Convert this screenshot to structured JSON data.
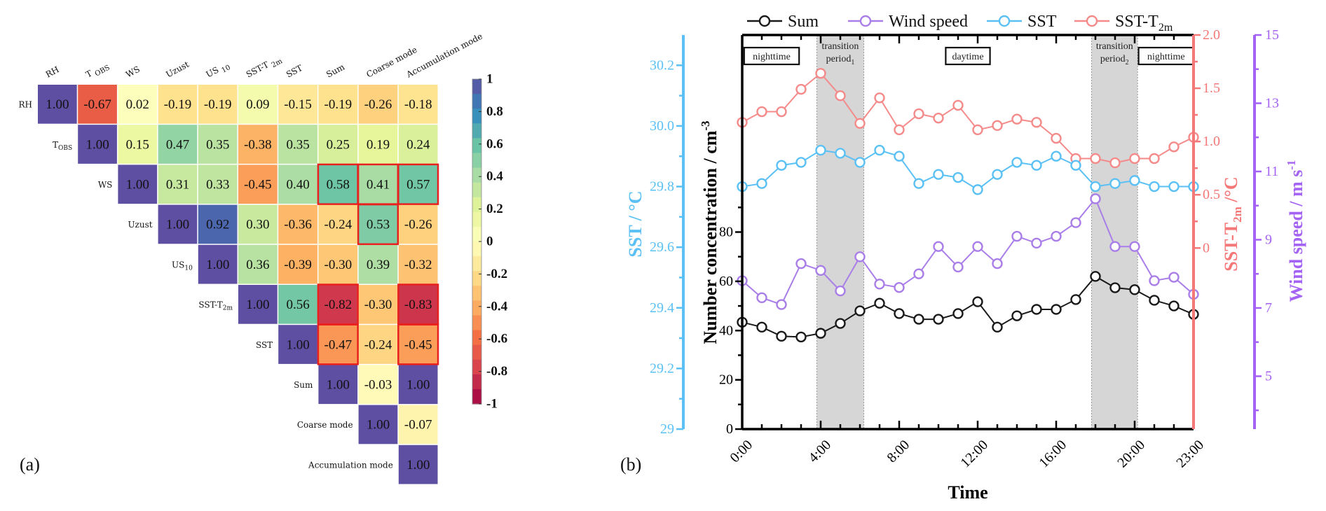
{
  "figure": {
    "panel_a_label": "(a)",
    "panel_b_label": "(b)"
  },
  "chart_data": [
    {
      "type": "heatmap",
      "title": "",
      "variables": [
        "RH",
        "T_OBS",
        "WS",
        "Uzust",
        "US_10",
        "SST-T_2m",
        "SST",
        "Sum",
        "Coarse mode",
        "Accumulation mode"
      ],
      "row_labels": [
        {
          "main": "RH",
          "sub": ""
        },
        {
          "main": "T",
          "sub": "OBS"
        },
        {
          "main": "WS",
          "sub": ""
        },
        {
          "main": "Uzust",
          "sub": ""
        },
        {
          "main": "US",
          "sub": "10"
        },
        {
          "main": "SST-T",
          "sub": "2m"
        },
        {
          "main": "SST",
          "sub": ""
        },
        {
          "main": "Sum",
          "sub": ""
        },
        {
          "main": "Coarse mode",
          "sub": ""
        },
        {
          "main": "Accumulation mode",
          "sub": ""
        }
      ],
      "col_labels": [
        {
          "main": "RH",
          "sub": ""
        },
        {
          "main": "T ",
          "sub": "OBS"
        },
        {
          "main": "WS",
          "sub": ""
        },
        {
          "main": "Uzust",
          "sub": ""
        },
        {
          "main": "US ",
          "sub": "10"
        },
        {
          "main": "SST-T ",
          "sub": "2m"
        },
        {
          "main": "SST",
          "sub": ""
        },
        {
          "main": "Sum",
          "sub": ""
        },
        {
          "main": "Coarse mode",
          "sub": ""
        },
        {
          "main": "Accumulation mode",
          "sub": ""
        }
      ],
      "matrix_upper": [
        [
          "1.00",
          "-0.67",
          "0.02",
          "-0.19",
          "-0.19",
          "0.09",
          "-0.15",
          "-0.19",
          "-0.26",
          "-0.18"
        ],
        [
          null,
          "1.00",
          "0.15",
          "0.47",
          "0.35",
          "-0.38",
          "0.35",
          "0.25",
          "0.19",
          "0.24"
        ],
        [
          null,
          null,
          "1.00",
          "0.31",
          "0.33",
          "-0.45",
          "0.40",
          "0.58",
          "0.41",
          "0.57"
        ],
        [
          null,
          null,
          null,
          "1.00",
          "0.92",
          "0.30",
          "-0.36",
          "-0.24",
          "0.53",
          "-0.26"
        ],
        [
          null,
          null,
          null,
          null,
          "1.00",
          "0.36",
          "-0.39",
          "-0.30",
          "0.39",
          "-0.32"
        ],
        [
          null,
          null,
          null,
          null,
          null,
          "1.00",
          "0.56",
          "-0.82",
          "-0.30",
          "-0.83"
        ],
        [
          null,
          null,
          null,
          null,
          null,
          null,
          "1.00",
          "-0.47",
          "-0.24",
          "-0.45"
        ],
        [
          null,
          null,
          null,
          null,
          null,
          null,
          null,
          "1.00",
          "-0.03",
          "1.00"
        ],
        [
          null,
          null,
          null,
          null,
          null,
          null,
          null,
          null,
          "1.00",
          "-0.07"
        ],
        [
          null,
          null,
          null,
          null,
          null,
          null,
          null,
          null,
          null,
          "1.00"
        ]
      ],
      "highlighted_cells": [
        [
          2,
          7
        ],
        [
          2,
          8
        ],
        [
          2,
          9
        ],
        [
          3,
          8
        ],
        [
          5,
          7
        ],
        [
          5,
          9
        ],
        [
          6,
          7
        ],
        [
          6,
          9
        ]
      ],
      "highlight_color": "#e8201e",
      "colorbar": {
        "range": [
          -1,
          1
        ],
        "ticks": [
          "1",
          "0.8",
          "0.6",
          "0.4",
          "0.2",
          "0",
          "-0.2",
          "-0.4",
          "-0.6",
          "-0.8",
          "-1"
        ],
        "colormap": "Spectral",
        "placement": "right"
      }
    },
    {
      "type": "line",
      "title": "",
      "xlabel": "Time",
      "x_ticks": [
        "0:00",
        "4:00",
        "8:00",
        "12:00",
        "16:00",
        "20:00",
        "23:00"
      ],
      "x_hours": [
        0,
        1,
        2,
        3,
        4,
        5,
        6,
        7,
        8,
        9,
        10,
        11,
        12,
        13,
        14,
        15,
        16,
        17,
        18,
        19,
        20,
        21,
        22,
        23
      ],
      "xlim": [
        0,
        23
      ],
      "legend_placement": "top",
      "series": [
        {
          "name": "Sum",
          "legend_main": "Sum",
          "legend_sub": "",
          "axis": "left",
          "color": "#1a1a1a",
          "values": [
            43.4,
            41.4,
            37.7,
            37.4,
            38.9,
            42.9,
            48.0,
            51.1,
            46.9,
            44.6,
            44.6,
            46.9,
            51.7,
            41.4,
            46.0,
            48.6,
            48.6,
            52.6,
            62.0,
            57.4,
            56.6,
            52.3,
            50.0,
            46.6
          ]
        },
        {
          "name": "Wind speed",
          "legend_main": "Wind speed",
          "legend_sub": "",
          "axis": "wind",
          "color": "#a97ee8",
          "values": [
            7.8,
            7.3,
            7.1,
            8.3,
            8.1,
            7.5,
            8.5,
            7.7,
            7.6,
            8.0,
            8.8,
            8.2,
            8.8,
            8.3,
            9.1,
            8.9,
            9.1,
            9.5,
            10.2,
            8.8,
            8.8,
            7.8,
            7.9,
            7.4
          ]
        },
        {
          "name": "SST",
          "legend_main": "SST",
          "legend_sub": "",
          "axis": "sst",
          "color": "#5bc1f5",
          "values": [
            29.8,
            29.81,
            29.87,
            29.88,
            29.92,
            29.91,
            29.88,
            29.92,
            29.9,
            29.81,
            29.84,
            29.83,
            29.79,
            29.84,
            29.88,
            29.87,
            29.9,
            29.87,
            29.8,
            29.81,
            29.82,
            29.8,
            29.8,
            29.8
          ]
        },
        {
          "name": "SST-T2m",
          "legend_main": "SST-T",
          "legend_sub": "2m",
          "axis": "diff",
          "color": "#f58a8a",
          "values": [
            1.18,
            1.28,
            1.28,
            1.49,
            1.64,
            1.43,
            1.17,
            1.41,
            1.11,
            1.26,
            1.22,
            1.34,
            1.11,
            1.15,
            1.21,
            1.18,
            1.03,
            0.84,
            0.84,
            0.8,
            0.84,
            0.84,
            0.95,
            1.04
          ]
        }
      ],
      "axes": {
        "left": {
          "label_main": "Number concentration / cm",
          "label_sup": "-3",
          "ylim": [
            0,
            160
          ],
          "ticks": [
            "0",
            "20",
            "40",
            "60",
            "80"
          ],
          "tick_values": [
            0,
            20,
            40,
            60,
            80
          ],
          "color": "#000000"
        },
        "sst": {
          "label": "SST / °C",
          "ylim": [
            29,
            30.3
          ],
          "ticks": [
            "29",
            "29.2",
            "29.4",
            "29.6",
            "29.8",
            "30.0",
            "30.2"
          ],
          "tick_values": [
            29,
            29.2,
            29.4,
            29.6,
            29.8,
            30.0,
            30.2
          ],
          "color": "#5bc1f5"
        },
        "diff": {
          "label_main": "SST-T",
          "label_sub": "2m",
          "label_tail": " /°C",
          "ylim": [
            -1.7,
            2.0
          ],
          "ticks": [
            "0",
            "0.5",
            "1.0",
            "1.5",
            "2.0"
          ],
          "tick_values": [
            0,
            0.5,
            1.0,
            1.5,
            2.0
          ],
          "color": "#f57878"
        },
        "wind": {
          "label_main": "Wind speed / m s",
          "label_sup": "-1",
          "ylim": [
            3.45,
            15
          ],
          "ticks": [
            "5",
            "7",
            "9",
            "11",
            "13",
            "15"
          ],
          "tick_values": [
            5,
            7,
            9,
            11,
            13,
            15
          ],
          "color": "#a463f2"
        }
      },
      "shaded_periods": [
        {
          "start": 3.8,
          "end": 6.2,
          "label_main": "transition",
          "label_line2": "period",
          "label_sub": "1"
        },
        {
          "start": 17.8,
          "end": 20.15,
          "label_main": "transition",
          "label_line2": "period",
          "label_sub": "2"
        }
      ],
      "period_boxes": [
        {
          "label": "nighttime",
          "center_hour": 1.5,
          "muted": true
        },
        {
          "label": "daytime",
          "center_hour": 11.5,
          "muted": false
        },
        {
          "label": "nighttime",
          "center_hour": 21.6,
          "muted": true
        }
      ]
    }
  ]
}
